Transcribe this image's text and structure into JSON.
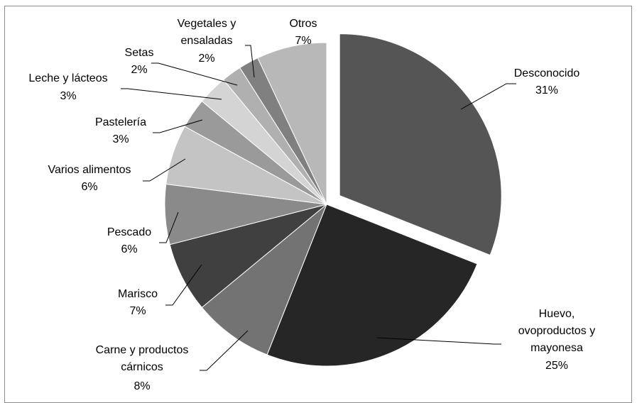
{
  "chart_data": {
    "type": "pie",
    "title": "",
    "slices": [
      {
        "label": "Desconocido",
        "value": 31,
        "pct_text": "31%",
        "color": "#555555",
        "exploded": true
      },
      {
        "label": "Huevo, ovoproductos y mayonesa",
        "value": 25,
        "pct_text": "25%",
        "color": "#262626",
        "exploded": false
      },
      {
        "label": "Carne y productos cárnicos",
        "value": 8,
        "pct_text": "8%",
        "color": "#737373",
        "exploded": false
      },
      {
        "label": "Marisco",
        "value": 7,
        "pct_text": "7%",
        "color": "#404040",
        "exploded": false
      },
      {
        "label": "Pescado",
        "value": 6,
        "pct_text": "6%",
        "color": "#8a8a8a",
        "exploded": false
      },
      {
        "label": "Varios alimentos",
        "value": 6,
        "pct_text": "6%",
        "color": "#c4c4c4",
        "exploded": false
      },
      {
        "label": "Pastelería",
        "value": 3,
        "pct_text": "3%",
        "color": "#9a9a9a",
        "exploded": false
      },
      {
        "label": "Leche y lácteos",
        "value": 3,
        "pct_text": "3%",
        "color": "#d4d4d4",
        "exploded": false
      },
      {
        "label": "Setas",
        "value": 2,
        "pct_text": "2%",
        "color": "#b0b0b0",
        "exploded": false
      },
      {
        "label": "Vegetales y ensaladas",
        "value": 2,
        "pct_text": "2%",
        "color": "#808080",
        "exploded": false
      },
      {
        "label": "Otros",
        "value": 7,
        "pct_text": "7%",
        "color": "#b8b8b8",
        "exploded": false
      }
    ]
  }
}
